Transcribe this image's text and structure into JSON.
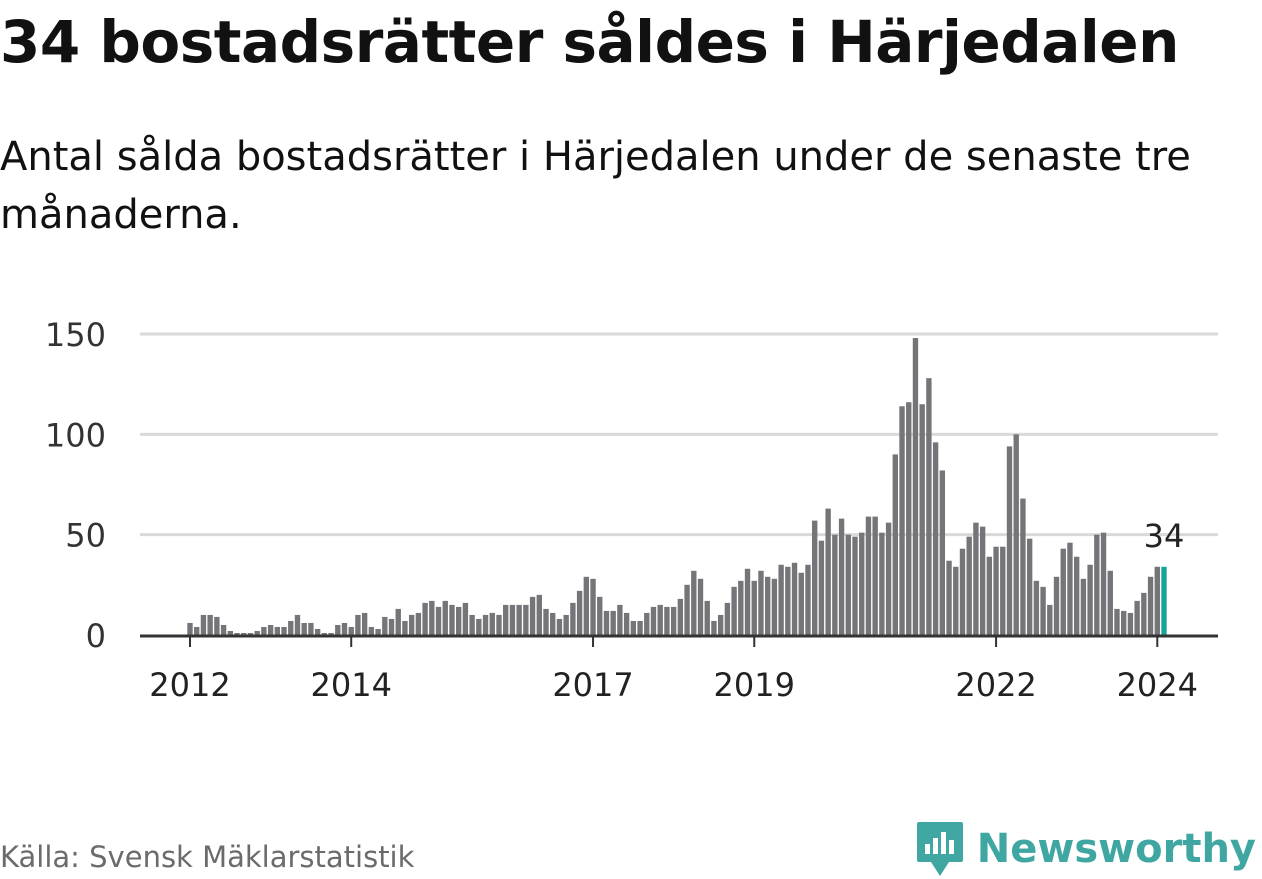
{
  "title": "34 bostadsrätter såldes i Härjedalen",
  "subtitle": "Antal sålda bostadsrätter i Härjedalen under de senaste tre månaderna.",
  "source": "Källa: Svensk Mäklarstatistik",
  "brand": "Newsworthy",
  "colors": {
    "bar": "#757479",
    "highlight": "#15a39a",
    "grid": "#d9d9d9",
    "axis": "#333333",
    "brand": "#3fa6a1"
  },
  "chart_data": {
    "type": "bar",
    "title": "34 bostadsrätter såldes i Härjedalen",
    "subtitle": "Antal sålda bostadsrätter i Härjedalen under de senaste tre månaderna.",
    "xlabel": "",
    "ylabel": "",
    "ylim": [
      0,
      150
    ],
    "yticks": [
      0,
      50,
      100,
      150
    ],
    "xtick_labels": [
      "2012",
      "2014",
      "2017",
      "2019",
      "2022",
      "2024"
    ],
    "xtick_bar_index": [
      0,
      24,
      60,
      84,
      120,
      144
    ],
    "highlight_label": "34",
    "grid": true,
    "series": [
      {
        "name": "Antal sålda bostadsrätter",
        "values": [
          6,
          4,
          10,
          10,
          9,
          5,
          2,
          1,
          1,
          1,
          2,
          4,
          5,
          4,
          4,
          7,
          10,
          6,
          6,
          3,
          1,
          1,
          5,
          6,
          4,
          10,
          11,
          4,
          3,
          9,
          8,
          13,
          7,
          10,
          11,
          16,
          17,
          14,
          17,
          15,
          14,
          16,
          10,
          8,
          10,
          11,
          10,
          15,
          15,
          15,
          15,
          19,
          20,
          13,
          11,
          8,
          10,
          16,
          22,
          29,
          28,
          19,
          12,
          12,
          15,
          11,
          7,
          7,
          11,
          14,
          15,
          14,
          14,
          18,
          25,
          32,
          28,
          17,
          7,
          10,
          16,
          24,
          27,
          33,
          27,
          32,
          29,
          28,
          35,
          34,
          36,
          31,
          35,
          57,
          47,
          63,
          50,
          58,
          50,
          49,
          51,
          59,
          59,
          51,
          56,
          90,
          114,
          116,
          148,
          115,
          128,
          96,
          82,
          37,
          34,
          43,
          49,
          56,
          54,
          39,
          44,
          44,
          94,
          100,
          68,
          48,
          27,
          24,
          15,
          29,
          43,
          46,
          39,
          28,
          35,
          50,
          51,
          32,
          13,
          12,
          11,
          17,
          21,
          29,
          34,
          34
        ]
      }
    ]
  }
}
